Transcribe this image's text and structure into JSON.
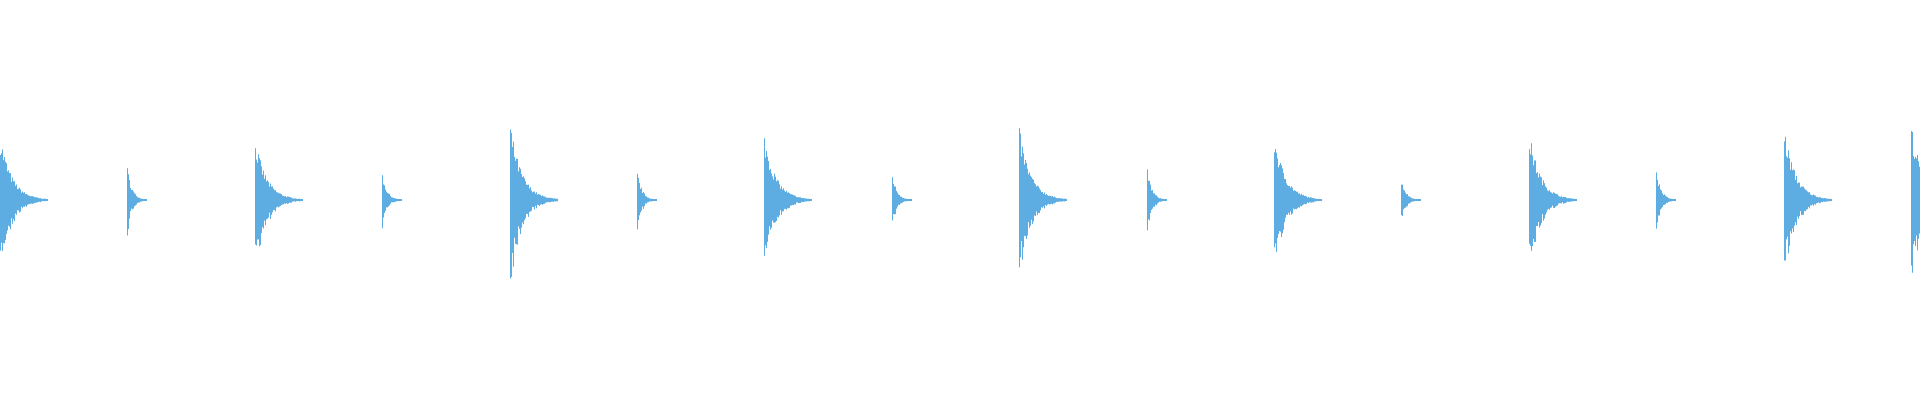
{
  "chart_data": {
    "type": "line",
    "style": "audio-waveform",
    "title": "",
    "xlabel": "",
    "ylabel": "",
    "ylim": [
      -1,
      1
    ],
    "grid": false,
    "axes_visible": false,
    "color": "#5DADE2",
    "background": "#ffffff",
    "series": [
      {
        "transient_index": [
          0,
          1,
          2,
          3,
          4,
          5,
          6,
          7,
          8,
          9,
          10,
          11,
          12,
          13,
          14,
          15
        ],
        "peak_amplitude": [
          0.3,
          0.15,
          0.28,
          0.12,
          0.35,
          0.13,
          0.3,
          0.12,
          0.33,
          0.14,
          0.3,
          0.1,
          0.31,
          0.14,
          0.33,
          0.35
        ],
        "decay": [
          "long",
          "short",
          "long",
          "short",
          "long",
          "short",
          "long",
          "short",
          "long",
          "short",
          "long",
          "short",
          "long",
          "short",
          "long",
          "long"
        ]
      }
    ]
  }
}
